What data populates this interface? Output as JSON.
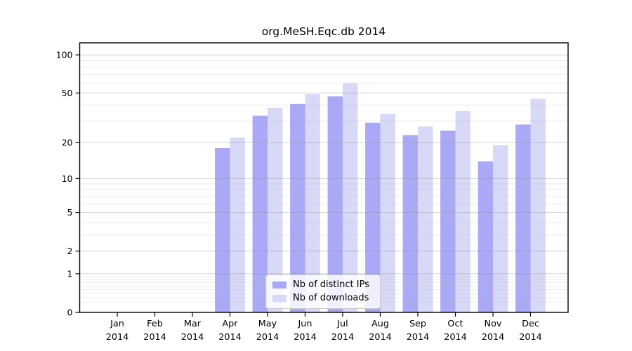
{
  "chart_data": {
    "type": "bar",
    "title": "org.MeSH.Eqc.db 2014",
    "categories": [
      "Jan",
      "Feb",
      "Mar",
      "Apr",
      "May",
      "Jun",
      "Jul",
      "Aug",
      "Sep",
      "Oct",
      "Nov",
      "Dec"
    ],
    "year_label": "2014",
    "series": [
      {
        "name": "Nb of distinct IPs",
        "color": "#a9a9f7",
        "values": [
          0,
          0,
          0,
          18,
          33,
          41,
          47,
          29,
          23,
          25,
          14,
          28
        ]
      },
      {
        "name": "Nb of downloads",
        "color": "#d8d8f7",
        "values": [
          0,
          0,
          0,
          22,
          38,
          49,
          60,
          34,
          27,
          36,
          19,
          45
        ]
      }
    ],
    "xlabel": "",
    "ylabel": "",
    "y_scale": "log10(1+x)",
    "y_major_ticks": [
      0,
      1,
      2,
      5,
      10,
      20,
      50,
      100
    ],
    "y_minor_ticks": [
      0.2,
      0.3,
      0.4,
      0.5,
      0.6,
      0.7,
      0.8,
      0.9,
      3,
      4,
      6,
      7,
      8,
      9,
      30,
      40,
      60,
      70,
      80,
      90
    ],
    "ylim": [
      0,
      124
    ],
    "grid": "on",
    "legend_position": "lower center"
  }
}
